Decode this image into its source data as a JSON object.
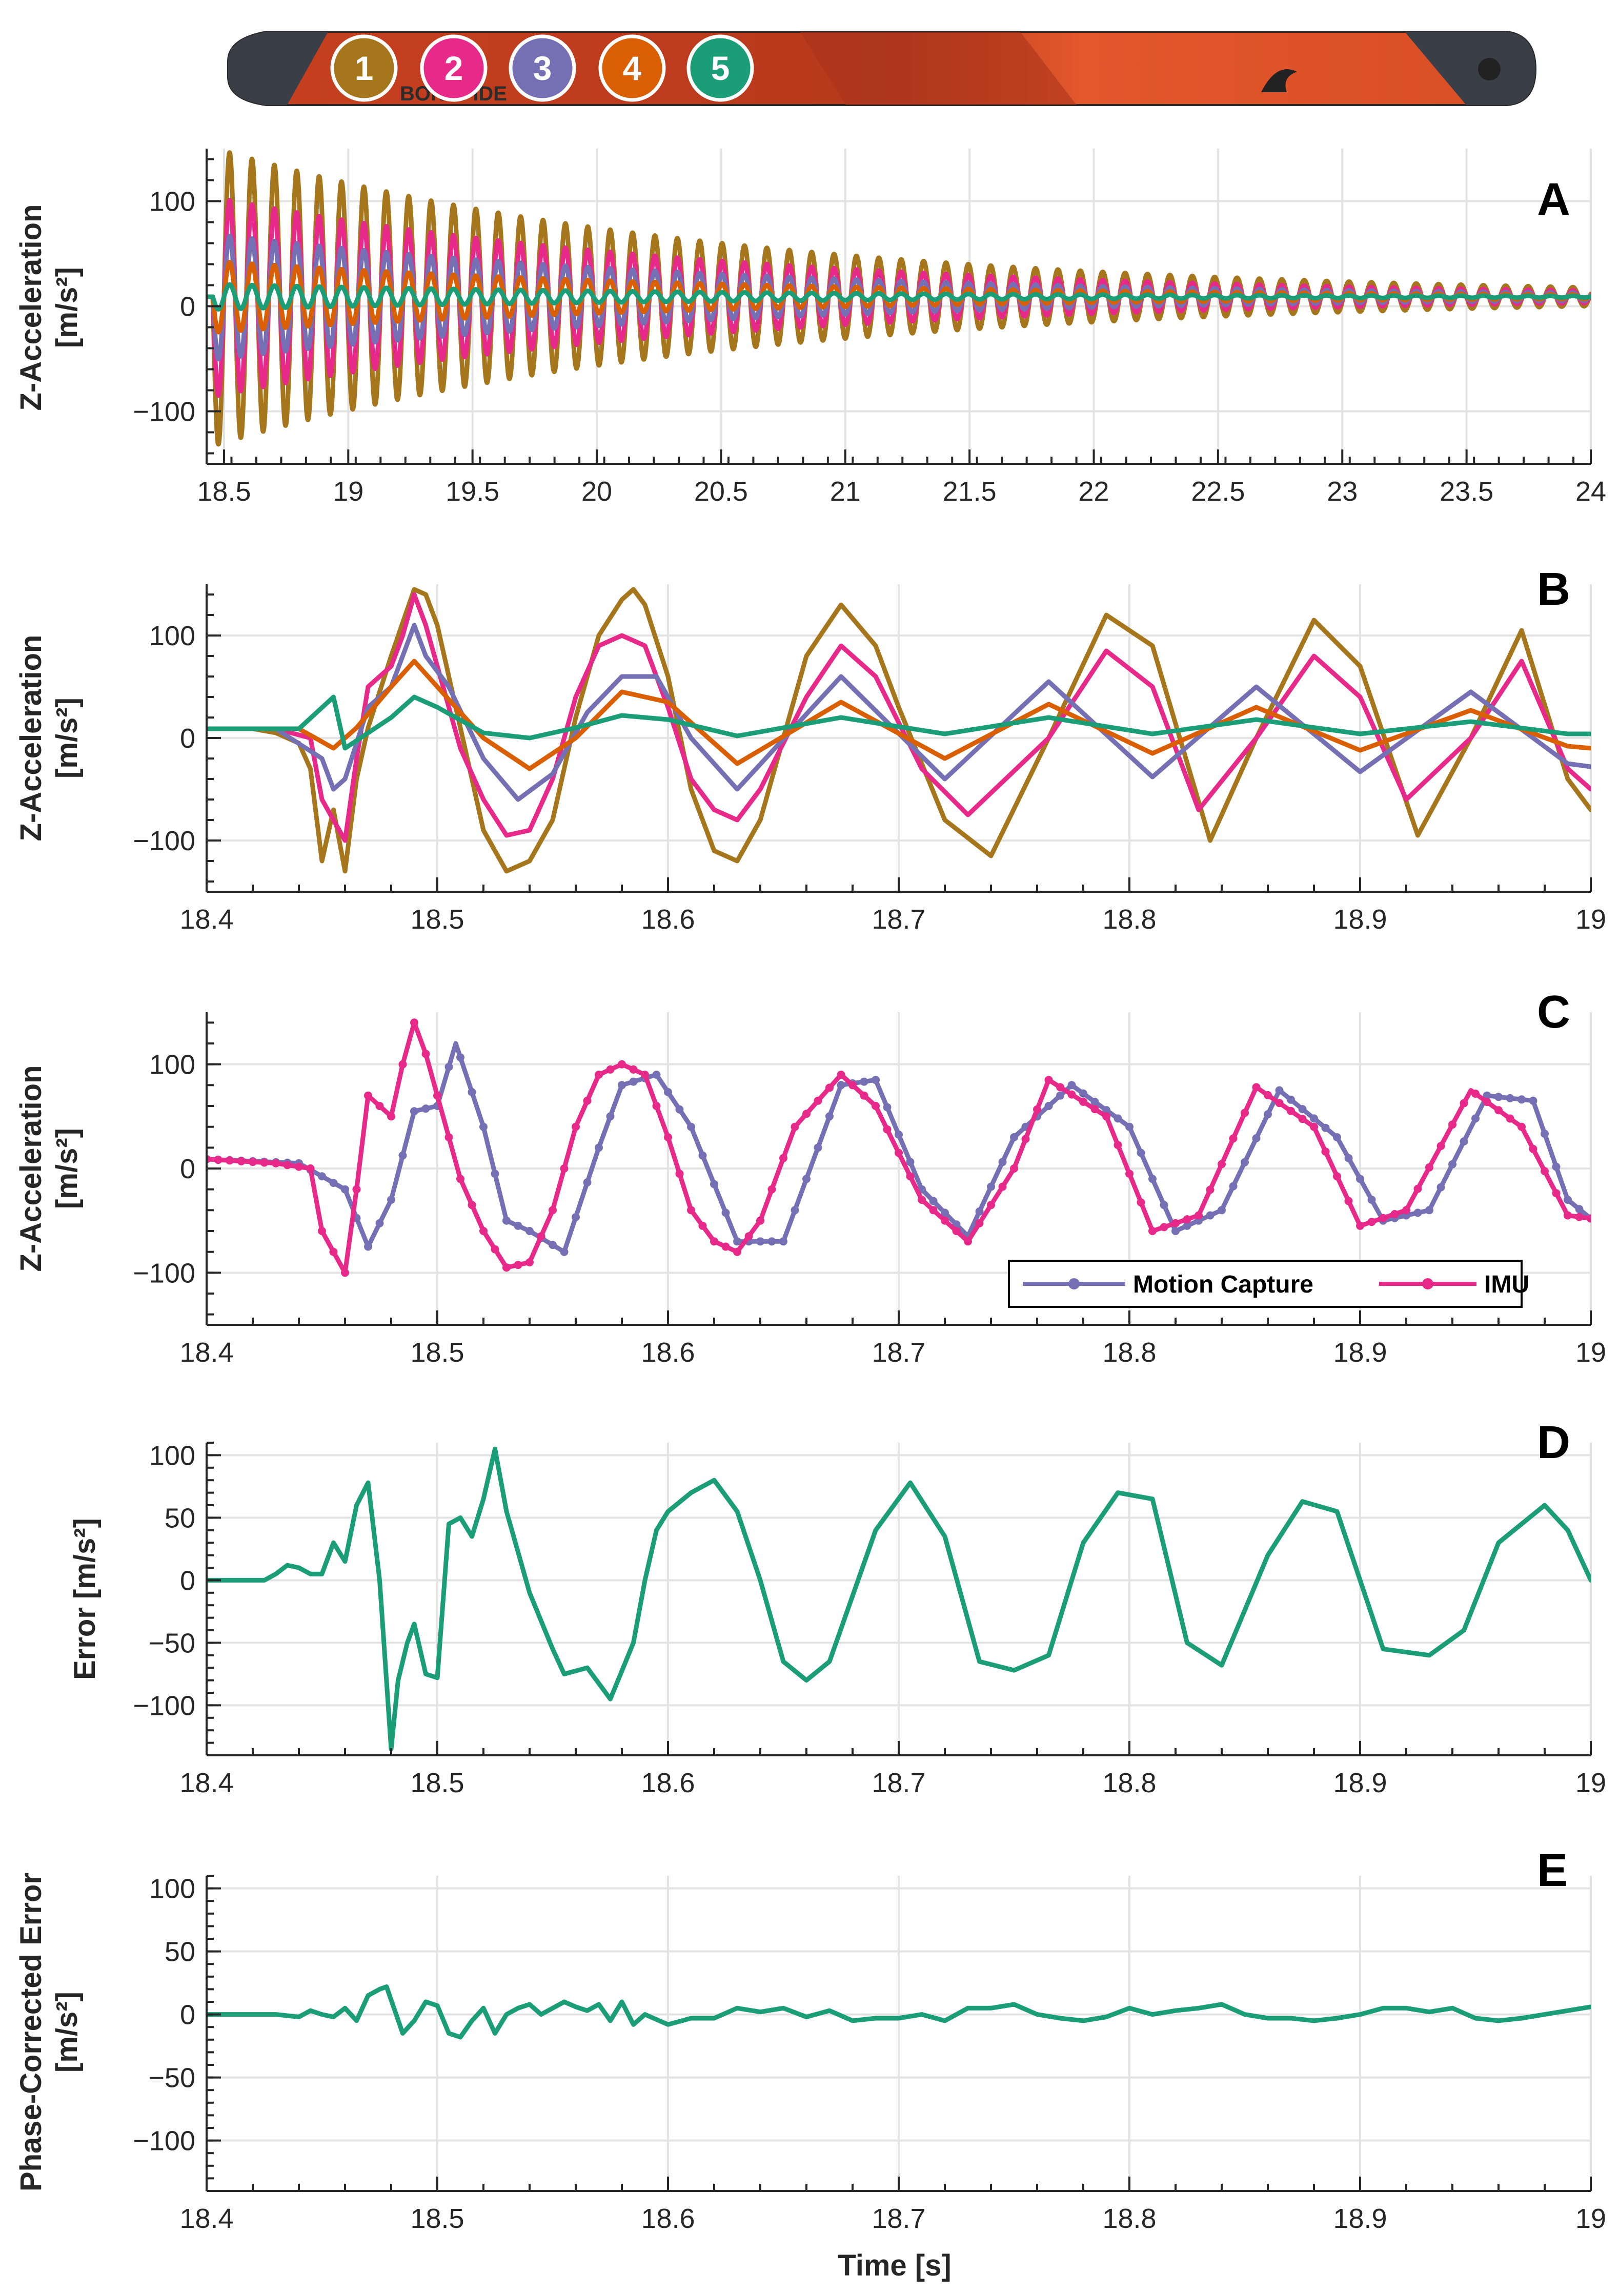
{
  "ski": {
    "brand_text": "BONAFIDE",
    "markers": [
      {
        "label": "1",
        "color": "#A6761D"
      },
      {
        "label": "2",
        "color": "#E7298A"
      },
      {
        "label": "3",
        "color": "#7570B3"
      },
      {
        "label": "4",
        "color": "#D95F02"
      },
      {
        "label": "5",
        "color": "#1B9E77"
      }
    ]
  },
  "colors": {
    "s1": "#A6761D",
    "s2": "#E7298A",
    "s3": "#7570B3",
    "s4": "#D95F02",
    "s5": "#1B9E77"
  },
  "chart_data": [
    {
      "id": "A",
      "type": "line",
      "panel_letter": "A",
      "title": "",
      "xlabel": "",
      "ylabel_line1": "Z-Acceleration",
      "ylabel_line2": "[m/s²]",
      "xlim": [
        18.43,
        24
      ],
      "ylim": [
        -150,
        150
      ],
      "xticks": [
        18.5,
        19,
        19.5,
        20,
        20.5,
        21,
        21.5,
        22,
        22.5,
        23,
        23.5,
        24
      ],
      "xtick_labels": [
        "18.5",
        "19",
        "19.5",
        "20",
        "20.5",
        "21",
        "21.5",
        "22",
        "22.5",
        "23",
        "23.5",
        "24"
      ],
      "yticks": [
        -100,
        0,
        100
      ],
      "ytick_labels": [
        "−100",
        "0",
        "100"
      ],
      "grid": true,
      "signal_model": {
        "onset": 18.455,
        "freq_hz": 11.1,
        "offset": 9,
        "decay_per_s": 0.5
      },
      "series": [
        {
          "name": "1",
          "color": "#A6761D",
          "amplitude": 142
        },
        {
          "name": "2",
          "color": "#E7298A",
          "amplitude": 95
        },
        {
          "name": "3",
          "color": "#7570B3",
          "amplitude": 60
        },
        {
          "name": "4",
          "color": "#D95F02",
          "amplitude": 34
        },
        {
          "name": "5",
          "color": "#1B9E77",
          "amplitude": 12
        }
      ]
    },
    {
      "id": "B",
      "type": "line",
      "panel_letter": "B",
      "title": "",
      "xlabel": "",
      "ylabel_line1": "Z-Acceleration",
      "ylabel_line2": "[m/s²]",
      "xlim": [
        18.4,
        19
      ],
      "ylim": [
        -150,
        150
      ],
      "xticks": [
        18.4,
        18.5,
        18.6,
        18.7,
        18.8,
        18.9,
        19
      ],
      "xtick_labels": [
        "18.4",
        "18.5",
        "18.6",
        "18.7",
        "18.8",
        "18.9",
        "19"
      ],
      "yticks": [
        -100,
        0,
        100
      ],
      "ytick_labels": [
        "−100",
        "0",
        "100"
      ],
      "grid": true,
      "series": [
        {
          "name": "1",
          "color": "#A6761D",
          "x": [
            18.4,
            18.42,
            18.43,
            18.44,
            18.445,
            18.45,
            18.455,
            18.46,
            18.465,
            18.47,
            18.48,
            18.49,
            18.495,
            18.5,
            18.51,
            18.52,
            18.53,
            18.54,
            18.55,
            18.56,
            18.57,
            18.58,
            18.585,
            18.59,
            18.6,
            18.61,
            18.62,
            18.63,
            18.64,
            18.65,
            18.66,
            18.675,
            18.69,
            18.7,
            18.72,
            18.74,
            18.765,
            18.79,
            18.81,
            18.835,
            18.855,
            18.88,
            18.9,
            18.925,
            18.948,
            18.97,
            18.99,
            19.0
          ],
          "y": [
            9,
            9,
            5,
            -5,
            -30,
            -120,
            -70,
            -130,
            -40,
            10,
            80,
            145,
            140,
            110,
            10,
            -90,
            -130,
            -120,
            -80,
            20,
            100,
            135,
            145,
            130,
            60,
            -50,
            -110,
            -120,
            -80,
            0,
            80,
            130,
            90,
            30,
            -80,
            -115,
            0,
            120,
            90,
            -100,
            0,
            115,
            70,
            -95,
            0,
            105,
            -40,
            -70
          ]
        },
        {
          "name": "2",
          "color": "#E7298A",
          "x": [
            18.4,
            18.43,
            18.445,
            18.45,
            18.455,
            18.46,
            18.465,
            18.47,
            18.48,
            18.485,
            18.49,
            18.495,
            18.5,
            18.51,
            18.52,
            18.53,
            18.54,
            18.55,
            18.56,
            18.57,
            18.58,
            18.59,
            18.6,
            18.61,
            18.62,
            18.63,
            18.64,
            18.66,
            18.675,
            18.69,
            18.71,
            18.73,
            18.765,
            18.79,
            18.81,
            18.83,
            18.855,
            18.88,
            18.9,
            18.92,
            18.948,
            18.97,
            18.99,
            19.0
          ],
          "y": [
            9,
            9,
            0,
            -60,
            -80,
            -100,
            -20,
            50,
            70,
            100,
            140,
            110,
            70,
            -10,
            -60,
            -95,
            -90,
            -40,
            40,
            90,
            100,
            90,
            30,
            -40,
            -70,
            -80,
            -50,
            40,
            90,
            60,
            -30,
            -75,
            0,
            85,
            50,
            -70,
            0,
            80,
            40,
            -60,
            0,
            75,
            -30,
            -50
          ]
        },
        {
          "name": "3",
          "color": "#7570B3",
          "x": [
            18.4,
            18.43,
            18.45,
            18.455,
            18.46,
            18.47,
            18.48,
            18.49,
            18.495,
            18.505,
            18.52,
            18.535,
            18.55,
            18.565,
            18.58,
            18.595,
            18.61,
            18.63,
            18.675,
            18.72,
            18.765,
            18.81,
            18.855,
            18.9,
            18.948,
            18.99,
            19.0
          ],
          "y": [
            9,
            9,
            -20,
            -50,
            -40,
            30,
            50,
            110,
            80,
            50,
            -20,
            -60,
            -35,
            25,
            60,
            60,
            0,
            -50,
            60,
            -40,
            55,
            -38,
            50,
            -33,
            45,
            -25,
            -28
          ]
        },
        {
          "name": "4",
          "color": "#D95F02",
          "x": [
            18.4,
            18.44,
            18.455,
            18.465,
            18.48,
            18.49,
            18.5,
            18.52,
            18.54,
            18.56,
            18.58,
            18.6,
            18.63,
            18.675,
            18.72,
            18.765,
            18.81,
            18.855,
            18.9,
            18.948,
            18.99,
            19.0
          ],
          "y": [
            9,
            9,
            -10,
            10,
            50,
            75,
            50,
            0,
            -30,
            0,
            45,
            35,
            -25,
            35,
            -20,
            33,
            -15,
            30,
            -12,
            27,
            -8,
            -10
          ]
        },
        {
          "name": "5",
          "color": "#1B9E77",
          "x": [
            18.4,
            18.44,
            18.455,
            18.46,
            18.48,
            18.49,
            18.5,
            18.52,
            18.54,
            18.56,
            18.58,
            18.6,
            18.63,
            18.675,
            18.72,
            18.765,
            18.81,
            18.855,
            18.9,
            18.948,
            18.99,
            19.0
          ],
          "y": [
            9,
            9,
            40,
            -10,
            20,
            40,
            30,
            5,
            0,
            10,
            22,
            18,
            2,
            20,
            4,
            20,
            4,
            18,
            4,
            16,
            4,
            4
          ]
        }
      ]
    },
    {
      "id": "C",
      "type": "line",
      "panel_letter": "C",
      "title": "",
      "xlabel": "",
      "ylabel_line1": "Z-Acceleration",
      "ylabel_line2": "[m/s²]",
      "xlim": [
        18.4,
        19
      ],
      "ylim": [
        -150,
        150
      ],
      "xticks": [
        18.4,
        18.5,
        18.6,
        18.7,
        18.8,
        18.9,
        19
      ],
      "xtick_labels": [
        "18.4",
        "18.5",
        "18.6",
        "18.7",
        "18.8",
        "18.9",
        "19"
      ],
      "yticks": [
        -100,
        0,
        100
      ],
      "ytick_labels": [
        "−100",
        "0",
        "100"
      ],
      "grid": true,
      "legend_position": "bottom-right",
      "legend": [
        "Motion Capture",
        "IMU"
      ],
      "series": [
        {
          "name": "Motion Capture",
          "color": "#7570B3",
          "markers": true,
          "x": [
            18.4,
            18.44,
            18.46,
            18.47,
            18.48,
            18.49,
            18.5,
            18.508,
            18.52,
            18.53,
            18.54,
            18.555,
            18.57,
            18.58,
            18.595,
            18.61,
            18.63,
            18.65,
            18.675,
            18.69,
            18.71,
            18.73,
            18.75,
            18.775,
            18.8,
            18.82,
            18.84,
            18.865,
            18.89,
            18.91,
            18.93,
            18.955,
            18.975,
            18.99,
            19.0
          ],
          "y": [
            9,
            5,
            -20,
            -75,
            -30,
            55,
            60,
            120,
            40,
            -50,
            -60,
            -80,
            20,
            80,
            90,
            40,
            -70,
            -70,
            80,
            85,
            -20,
            -65,
            30,
            80,
            40,
            -60,
            -40,
            75,
            30,
            -50,
            -40,
            70,
            65,
            -30,
            -48
          ]
        },
        {
          "name": "IMU",
          "color": "#E7298A",
          "markers": true,
          "x": [
            18.4,
            18.43,
            18.445,
            18.45,
            18.455,
            18.46,
            18.465,
            18.47,
            18.48,
            18.485,
            18.49,
            18.495,
            18.5,
            18.51,
            18.52,
            18.53,
            18.54,
            18.55,
            18.56,
            18.57,
            18.58,
            18.59,
            18.6,
            18.61,
            18.62,
            18.63,
            18.64,
            18.655,
            18.675,
            18.69,
            18.71,
            18.73,
            18.75,
            18.765,
            18.79,
            18.81,
            18.83,
            18.855,
            18.88,
            18.9,
            18.92,
            18.948,
            18.97,
            18.99,
            19.0
          ],
          "y": [
            9,
            5,
            0,
            -60,
            -80,
            -100,
            -20,
            70,
            50,
            100,
            140,
            110,
            70,
            -10,
            -60,
            -95,
            -90,
            -40,
            40,
            90,
            100,
            90,
            30,
            -40,
            -70,
            -80,
            -50,
            40,
            90,
            60,
            -30,
            -70,
            0,
            85,
            50,
            -60,
            -45,
            78,
            40,
            -55,
            -40,
            75,
            40,
            -45,
            -48
          ]
        }
      ]
    },
    {
      "id": "D",
      "type": "line",
      "panel_letter": "D",
      "title": "",
      "xlabel": "",
      "ylabel_line1": "Error [m/s²]",
      "xlim": [
        18.4,
        19
      ],
      "ylim": [
        -140,
        110
      ],
      "xticks": [
        18.4,
        18.5,
        18.6,
        18.7,
        18.8,
        18.9,
        19
      ],
      "xtick_labels": [
        "18.4",
        "18.5",
        "18.6",
        "18.7",
        "18.8",
        "18.9",
        "19"
      ],
      "yticks": [
        -100,
        -50,
        0,
        50,
        100
      ],
      "ytick_labels": [
        "−100",
        "−50",
        "0",
        "50",
        "100"
      ],
      "grid": true,
      "series": [
        {
          "name": "Error",
          "color": "#1B9E77",
          "x": [
            18.4,
            18.425,
            18.43,
            18.435,
            18.44,
            18.445,
            18.45,
            18.455,
            18.46,
            18.465,
            18.47,
            18.475,
            18.48,
            18.483,
            18.487,
            18.49,
            18.495,
            18.5,
            18.505,
            18.51,
            18.515,
            18.52,
            18.525,
            18.53,
            18.54,
            18.55,
            18.555,
            18.565,
            18.575,
            18.585,
            18.59,
            18.595,
            18.6,
            18.61,
            18.62,
            18.63,
            18.64,
            18.65,
            18.66,
            18.67,
            18.69,
            18.705,
            18.72,
            18.735,
            18.75,
            18.765,
            18.78,
            18.795,
            18.81,
            18.825,
            18.84,
            18.86,
            18.875,
            18.89,
            18.91,
            18.93,
            18.945,
            18.96,
            18.98,
            18.99,
            19.0
          ],
          "y": [
            0,
            0,
            5,
            12,
            10,
            5,
            5,
            30,
            15,
            60,
            78,
            0,
            -135,
            -80,
            -50,
            -35,
            -75,
            -78,
            45,
            50,
            35,
            65,
            105,
            55,
            -10,
            -55,
            -75,
            -70,
            -95,
            -50,
            0,
            40,
            55,
            70,
            80,
            55,
            0,
            -65,
            -80,
            -65,
            40,
            78,
            35,
            -65,
            -72,
            -60,
            30,
            70,
            65,
            -50,
            -68,
            20,
            63,
            55,
            -55,
            -60,
            -40,
            30,
            60,
            40,
            0
          ]
        }
      ]
    },
    {
      "id": "E",
      "type": "line",
      "panel_letter": "E",
      "title": "",
      "xlabel": "Time [s]",
      "ylabel_line1": "Phase-Corrected Error",
      "ylabel_line2": "[m/s²]",
      "xlim": [
        18.4,
        19
      ],
      "ylim": [
        -140,
        110
      ],
      "xticks": [
        18.4,
        18.5,
        18.6,
        18.7,
        18.8,
        18.9,
        19
      ],
      "xtick_labels": [
        "18.4",
        "18.5",
        "18.6",
        "18.7",
        "18.8",
        "18.9",
        "19"
      ],
      "yticks": [
        -100,
        -50,
        0,
        50,
        100
      ],
      "ytick_labels": [
        "−100",
        "−50",
        "0",
        "50",
        "100"
      ],
      "grid": true,
      "series": [
        {
          "name": "Phase-Corrected Error",
          "color": "#1B9E77",
          "x": [
            18.4,
            18.43,
            18.44,
            18.445,
            18.45,
            18.455,
            18.46,
            18.465,
            18.47,
            18.475,
            18.478,
            18.485,
            18.49,
            18.495,
            18.5,
            18.505,
            18.51,
            18.515,
            18.52,
            18.525,
            18.53,
            18.535,
            18.54,
            18.545,
            18.55,
            18.555,
            18.56,
            18.565,
            18.57,
            18.575,
            18.58,
            18.585,
            18.59,
            18.6,
            18.61,
            18.62,
            18.63,
            18.64,
            18.65,
            18.66,
            18.67,
            18.68,
            18.69,
            18.7,
            18.71,
            18.72,
            18.73,
            18.74,
            18.75,
            18.76,
            18.77,
            18.78,
            18.79,
            18.8,
            18.81,
            18.82,
            18.83,
            18.84,
            18.85,
            18.86,
            18.87,
            18.88,
            18.89,
            18.9,
            18.91,
            18.92,
            18.93,
            18.94,
            18.95,
            18.96,
            18.97,
            18.98,
            18.99,
            19.0
          ],
          "y": [
            0,
            0,
            -2,
            3,
            0,
            -2,
            5,
            -5,
            15,
            20,
            22,
            -15,
            -5,
            10,
            7,
            -15,
            -18,
            -5,
            5,
            -15,
            0,
            5,
            8,
            0,
            5,
            10,
            6,
            3,
            8,
            -5,
            10,
            -8,
            0,
            -8,
            -3,
            -3,
            5,
            2,
            5,
            -2,
            3,
            -5,
            -3,
            -3,
            0,
            -5,
            5,
            5,
            8,
            0,
            -3,
            -5,
            -2,
            5,
            0,
            3,
            5,
            8,
            0,
            -3,
            -3,
            -5,
            -3,
            0,
            5,
            5,
            2,
            5,
            -3,
            -5,
            -3,
            0,
            3,
            6
          ]
        }
      ]
    }
  ]
}
